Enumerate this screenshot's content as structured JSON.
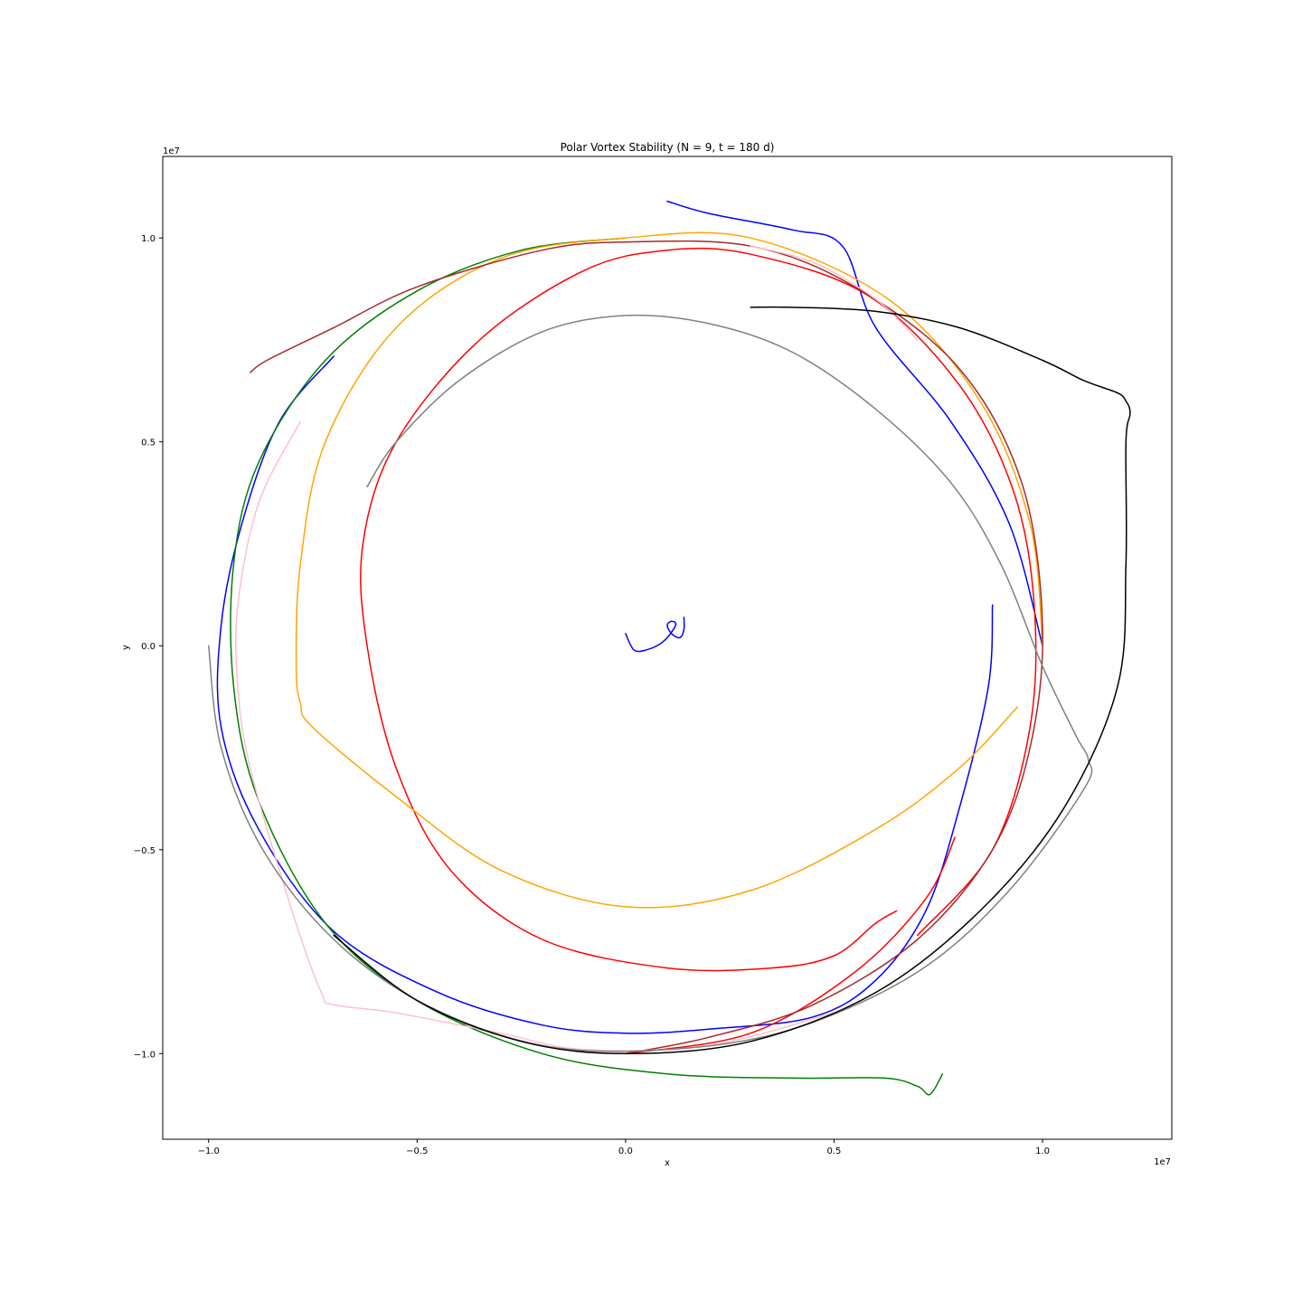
{
  "chart_data": {
    "type": "line",
    "title": "Polar Vortex Stability (N = 9, t = 180 d)",
    "xlabel": "x",
    "ylabel": "y",
    "x_offset_label": "1e7",
    "y_offset_label": "1e7",
    "xlim": [
      -1.11,
      1.31
    ],
    "ylim": [
      -1.21,
      1.2
    ],
    "x_ticks": [
      -1.0,
      -0.5,
      0.0,
      0.5,
      1.0
    ],
    "x_tick_labels": [
      "−1.0",
      "−0.5",
      "0.0",
      "0.5",
      "1.0"
    ],
    "y_ticks": [
      -1.0,
      -0.5,
      0.0,
      0.5,
      1.0
    ],
    "y_tick_labels": [
      "−1.0",
      "−0.5",
      "0.0",
      "0.5",
      "1.0"
    ],
    "grid": false,
    "legend": "none",
    "series": [
      {
        "color": "#0000ff",
        "points": [
          [
            0.0,
            0.03
          ],
          [
            0.02,
            -0.01
          ],
          [
            0.05,
            -0.01
          ],
          [
            0.09,
            0.01
          ],
          [
            0.12,
            0.05
          ],
          [
            0.11,
            0.06
          ],
          [
            0.1,
            0.05
          ],
          [
            0.11,
            0.03
          ],
          [
            0.13,
            0.02
          ],
          [
            0.14,
            0.04
          ],
          [
            0.14,
            0.07
          ]
        ]
      },
      {
        "color": "#0000ff",
        "points": [
          [
            1.0,
            0.0
          ],
          [
            0.92,
            0.3
          ],
          [
            0.78,
            0.55
          ],
          [
            0.6,
            0.78
          ],
          [
            0.52,
            0.98
          ],
          [
            0.4,
            1.02
          ],
          [
            0.2,
            1.06
          ],
          [
            0.1,
            1.09
          ]
        ]
      },
      {
        "color": "#0000ff",
        "points": [
          [
            0.88,
            0.1
          ],
          [
            0.87,
            -0.1
          ],
          [
            0.8,
            -0.4
          ],
          [
            0.72,
            -0.65
          ],
          [
            0.6,
            -0.82
          ],
          [
            0.45,
            -0.91
          ],
          [
            0.2,
            -0.94
          ],
          [
            0.0,
            -0.95
          ],
          [
            -0.2,
            -0.93
          ],
          [
            -0.45,
            -0.85
          ],
          [
            -0.7,
            -0.7
          ],
          [
            -0.88,
            -0.45
          ],
          [
            -0.97,
            -0.2
          ],
          [
            -0.97,
            0.05
          ],
          [
            -0.92,
            0.3
          ],
          [
            -0.83,
            0.55
          ],
          [
            -0.7,
            0.71
          ]
        ]
      },
      {
        "color": "#008000",
        "points": [
          [
            0.0,
            1.0
          ],
          [
            -0.25,
            0.97
          ],
          [
            -0.5,
            0.87
          ],
          [
            -0.72,
            0.7
          ],
          [
            -0.88,
            0.45
          ],
          [
            -0.94,
            0.2
          ],
          [
            -0.94,
            -0.1
          ],
          [
            -0.88,
            -0.38
          ],
          [
            -0.72,
            -0.68
          ],
          [
            -0.5,
            -0.87
          ],
          [
            -0.2,
            -1.0
          ],
          [
            0.1,
            -1.05
          ],
          [
            0.4,
            -1.06
          ],
          [
            0.62,
            -1.06
          ],
          [
            0.7,
            -1.08
          ],
          [
            0.73,
            -1.1
          ],
          [
            0.76,
            -1.05
          ]
        ]
      },
      {
        "color": "#ff0000",
        "points": [
          [
            0.0,
            -1.0
          ],
          [
            0.3,
            -0.95
          ],
          [
            0.55,
            -0.8
          ],
          [
            0.72,
            -0.62
          ],
          [
            0.79,
            -0.47
          ]
        ]
      },
      {
        "color": "#ff0000",
        "points": [
          [
            0.7,
            -0.71
          ],
          [
            0.88,
            -0.5
          ],
          [
            0.97,
            -0.2
          ],
          [
            0.98,
            0.1
          ],
          [
            0.93,
            0.38
          ],
          [
            0.8,
            0.64
          ],
          [
            0.58,
            0.86
          ],
          [
            0.3,
            0.96
          ],
          [
            0.1,
            0.97
          ],
          [
            -0.1,
            0.92
          ],
          [
            -0.35,
            0.75
          ],
          [
            -0.55,
            0.5
          ],
          [
            -0.63,
            0.25
          ],
          [
            -0.62,
            0.0
          ],
          [
            -0.55,
            -0.3
          ],
          [
            -0.42,
            -0.55
          ],
          [
            -0.2,
            -0.72
          ],
          [
            0.1,
            -0.79
          ],
          [
            0.35,
            -0.79
          ],
          [
            0.5,
            -0.76
          ],
          [
            0.6,
            -0.68
          ],
          [
            0.65,
            -0.65
          ]
        ]
      },
      {
        "color": "#ffa500",
        "points": [
          [
            1.0,
            0.0
          ],
          [
            0.97,
            0.3
          ],
          [
            0.85,
            0.6
          ],
          [
            0.63,
            0.85
          ],
          [
            0.3,
            1.0
          ],
          [
            0.0,
            1.0
          ],
          [
            -0.3,
            0.95
          ],
          [
            -0.55,
            0.78
          ],
          [
            -0.72,
            0.5
          ],
          [
            -0.78,
            0.2
          ],
          [
            -0.79,
            -0.05
          ],
          [
            -0.78,
            -0.14
          ],
          [
            -0.75,
            -0.2
          ],
          [
            -0.55,
            -0.37
          ],
          [
            -0.3,
            -0.55
          ],
          [
            0.0,
            -0.64
          ],
          [
            0.3,
            -0.6
          ],
          [
            0.6,
            -0.45
          ],
          [
            0.8,
            -0.3
          ],
          [
            0.94,
            -0.15
          ]
        ]
      },
      {
        "color": "#a52a2a",
        "points": [
          [
            -0.9,
            0.67
          ],
          [
            -0.86,
            0.7
          ],
          [
            -0.7,
            0.78
          ],
          [
            -0.5,
            0.88
          ],
          [
            -0.2,
            0.97
          ],
          [
            0.0,
            0.99
          ],
          [
            0.3,
            0.98
          ],
          [
            0.55,
            0.88
          ],
          [
            0.8,
            0.68
          ],
          [
            0.95,
            0.4
          ],
          [
            1.0,
            0.05
          ],
          [
            0.97,
            -0.25
          ],
          [
            0.88,
            -0.5
          ],
          [
            0.7,
            -0.72
          ],
          [
            0.45,
            -0.88
          ],
          [
            0.2,
            -0.96
          ],
          [
            0.0,
            -1.0
          ]
        ]
      },
      {
        "color": "#ffc0cb",
        "points": [
          [
            -0.78,
            0.55
          ],
          [
            -0.88,
            0.35
          ],
          [
            -0.93,
            0.1
          ],
          [
            -0.93,
            -0.1
          ],
          [
            -0.9,
            -0.3
          ],
          [
            -0.8,
            -0.65
          ],
          [
            -0.73,
            -0.85
          ],
          [
            -0.7,
            -0.88
          ],
          [
            -0.55,
            -0.9
          ],
          [
            -0.3,
            -0.95
          ],
          [
            -0.1,
            -0.99
          ],
          [
            0.2,
            -0.98
          ],
          [
            0.5,
            -0.9
          ]
        ]
      },
      {
        "color": "#ffc0cb",
        "points": [
          [
            0.7,
            0.75
          ],
          [
            0.6,
            0.85
          ],
          [
            0.45,
            0.94
          ],
          [
            0.3,
            0.98
          ]
        ]
      },
      {
        "color": "#808080",
        "points": [
          [
            -1.0,
            0.0
          ],
          [
            -0.97,
            -0.25
          ],
          [
            -0.87,
            -0.5
          ],
          [
            -0.7,
            -0.72
          ],
          [
            -0.48,
            -0.88
          ],
          [
            -0.2,
            -0.98
          ],
          [
            0.1,
            -0.99
          ],
          [
            0.4,
            -0.94
          ],
          [
            0.7,
            -0.8
          ],
          [
            0.92,
            -0.6
          ],
          [
            1.1,
            -0.35
          ],
          [
            1.11,
            -0.28
          ],
          [
            1.08,
            -0.22
          ],
          [
            1.0,
            -0.05
          ],
          [
            0.9,
            0.2
          ],
          [
            0.78,
            0.4
          ],
          [
            0.6,
            0.58
          ],
          [
            0.4,
            0.72
          ],
          [
            0.2,
            0.79
          ],
          [
            0.0,
            0.81
          ],
          [
            -0.2,
            0.77
          ],
          [
            -0.4,
            0.65
          ],
          [
            -0.55,
            0.5
          ],
          [
            -0.62,
            0.39
          ]
        ]
      },
      {
        "color": "#000000",
        "points": [
          [
            -0.7,
            -0.71
          ],
          [
            -0.5,
            -0.87
          ],
          [
            -0.25,
            -0.97
          ],
          [
            0.0,
            -1.0
          ],
          [
            0.3,
            -0.97
          ],
          [
            0.6,
            -0.85
          ],
          [
            0.85,
            -0.65
          ],
          [
            1.05,
            -0.4
          ],
          [
            1.18,
            -0.1
          ],
          [
            1.2,
            0.2
          ],
          [
            1.2,
            0.5
          ],
          [
            1.21,
            0.57
          ],
          [
            1.2,
            0.6
          ],
          [
            1.18,
            0.62
          ],
          [
            1.1,
            0.65
          ],
          [
            1.0,
            0.7
          ],
          [
            0.8,
            0.78
          ],
          [
            0.6,
            0.82
          ],
          [
            0.4,
            0.83
          ],
          [
            0.3,
            0.83
          ]
        ]
      }
    ]
  }
}
